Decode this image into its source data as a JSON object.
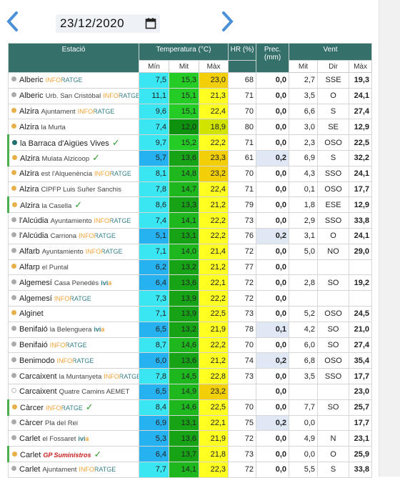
{
  "header": {
    "date": "23/12/2020"
  },
  "table": {
    "columns": {
      "station": "Estació",
      "temperature": "Temperatura (°C)",
      "humidity": "HR (%)",
      "precipitation": "Prec. (mm)",
      "wind": "Vent",
      "temp_min": "Mín",
      "temp_mean": "Mit",
      "temp_max": "Màx",
      "wind_mean": "Mit",
      "wind_dir": "Dir",
      "wind_max": "Màx"
    },
    "rows": [
      {
        "dot": "#aaaaaa",
        "name": "Alberic",
        "tag": "INFORATGE",
        "min": "7,5",
        "mit": "15,3",
        "max": "23,0",
        "hr": "68",
        "prec": "0,0",
        "vmit": "2,7",
        "dir": "SSE",
        "vmax": "19,3"
      },
      {
        "dot": "#aaaaaa",
        "name": "Alberic",
        "place": "Urb. San Cristóbal",
        "tag": "INFORATGE",
        "min": "11,1",
        "mit": "15,1",
        "max": "21,3",
        "hr": "71",
        "prec": "0,0",
        "vmit": "3,5",
        "dir": "O",
        "vmax": "24,1"
      },
      {
        "dot": "#e8b04a",
        "name": "Alzira",
        "place": "Ajuntament",
        "tag": "INFORATGE",
        "min": "9,6",
        "mit": "15,1",
        "max": "22,4",
        "hr": "70",
        "prec": "0,0",
        "vmit": "6,6",
        "dir": "S",
        "vmax": "27,4"
      },
      {
        "dot": "#e8b04a",
        "name": "Alzira",
        "place": "la Murta",
        "min": "7,4",
        "mit": "12,0",
        "max": "18,9",
        "hr": "80",
        "prec": "0,0",
        "vmit": "3,0",
        "dir": "SE",
        "vmax": "12,9"
      },
      {
        "dot": "#1f6f6f",
        "name": "la Barraca d'Aigües Vives",
        "verified": true,
        "min": "9,7",
        "mit": "15,2",
        "max": "22,2",
        "hr": "71",
        "prec": "0,0",
        "vmit": "2,3",
        "dir": "OSO",
        "vmax": "22,5"
      },
      {
        "dot": "#e8b04a",
        "name": "Alzira",
        "place": "Mulata Alzicoop",
        "verified": true,
        "min": "5,7",
        "mit": "13,6",
        "max": "23,3",
        "hr": "61",
        "prec": "0,2",
        "vmit": "6,9",
        "dir": "S",
        "vmax": "32,2"
      },
      {
        "dot": "#e8b04a",
        "name": "Alzira",
        "place": "est l'Alquenència",
        "tag": "INFORATGE",
        "min": "8,1",
        "mit": "14,8",
        "max": "23,2",
        "hr": "70",
        "prec": "0,0",
        "vmit": "4,3",
        "dir": "SSO",
        "vmax": "24,1"
      },
      {
        "dot": "#e8b04a",
        "name": "Alzira",
        "place": "CIPFP Luis Suñer Sanchis",
        "min": "7,8",
        "mit": "14,7",
        "max": "22,4",
        "hr": "71",
        "prec": "0,0",
        "vmit": "0,1",
        "dir": "OSO",
        "vmax": "17,7"
      },
      {
        "dot": "#e8b04a",
        "name": "Alzira",
        "place": "la Casella",
        "verified": true,
        "min": "8,6",
        "mit": "13,3",
        "max": "21,2",
        "hr": "79",
        "prec": "0,0",
        "vmit": "1,8",
        "dir": "ESE",
        "vmax": "12,9"
      },
      {
        "dot": "#aaaaaa",
        "name": "l'Alcúdia",
        "place": "Ayuntamiento",
        "tag": "INFORATGE",
        "min": "7,4",
        "mit": "14,1",
        "max": "22,2",
        "hr": "73",
        "prec": "0,0",
        "vmit": "2,9",
        "dir": "SSO",
        "vmax": "33,8"
      },
      {
        "dot": "#aaaaaa",
        "name": "l'Alcúdia",
        "place": "Carriona",
        "tag": "INFORATGE",
        "min": "5,1",
        "mit": "13,1",
        "max": "22,2",
        "hr": "76",
        "prec": "0,2",
        "vmit": "3,1",
        "dir": "O",
        "vmax": "24,1"
      },
      {
        "dot": "#aaaaaa",
        "name": "Alfarb",
        "place": "Ayuntamiento",
        "tag": "INFORATGE",
        "min": "7,1",
        "mit": "14,0",
        "max": "21,4",
        "hr": "72",
        "prec": "0,0",
        "vmit": "5,0",
        "dir": "NO",
        "vmax": "29,0"
      },
      {
        "dot": "#e8b04a",
        "name": "Alfarp",
        "place": "el Puntal",
        "min": "6,2",
        "mit": "13,2",
        "max": "21,2",
        "hr": "77",
        "prec": "0,0",
        "vmit": null,
        "dir": null,
        "vmax": null
      },
      {
        "dot": "#aaaaaa",
        "name": "Algemesí",
        "place": "Casa Penedés",
        "tag": "ivia",
        "min": "6,4",
        "mit": "13,6",
        "max": "22,1",
        "hr": "72",
        "prec": "0,0",
        "vmit": "2,8",
        "dir": "SO",
        "vmax": "19,2"
      },
      {
        "dot": "#aaaaaa",
        "name": "Algemesí",
        "tag": "INFORATGE",
        "min": "7,3",
        "mit": "13,9",
        "max": "22,2",
        "hr": "72",
        "prec": "0,0",
        "vmit": null,
        "dir": null,
        "vmax": null
      },
      {
        "dot": "#e8b04a",
        "name": "Alginet",
        "min": "7,1",
        "mit": "13,9",
        "max": "22,5",
        "hr": "73",
        "prec": "0,0",
        "vmit": "5,2",
        "dir": "OSO",
        "vmax": "24,5"
      },
      {
        "dot": "#aaaaaa",
        "name": "Benifaió",
        "place": "la Belenguera",
        "tag": "ivia",
        "min": "6,5",
        "mit": "13,2",
        "max": "21,9",
        "hr": "78",
        "prec": "0,1",
        "vmit": "4,2",
        "dir": "SO",
        "vmax": "21,0"
      },
      {
        "dot": "#aaaaaa",
        "name": "Benifaió",
        "tag": "INFORATGE",
        "min": "8,7",
        "mit": "14,6",
        "max": "22,2",
        "hr": "70",
        "prec": "0,0",
        "vmit": "6,0",
        "dir": "SO",
        "vmax": "27,4"
      },
      {
        "dot": "#aaaaaa",
        "name": "Benimodo",
        "tag": "INFORATGE",
        "min": "6,0",
        "mit": "13,6",
        "max": "21,2",
        "hr": "74",
        "prec": "0,2",
        "vmit": "6,8",
        "dir": "OSO",
        "vmax": "35,4"
      },
      {
        "dot": "#aaaaaa",
        "name": "Carcaixent",
        "place": "la Muntanyeta",
        "tag": "INFORATGE",
        "min": "7,8",
        "mit": "14,5",
        "max": "22,8",
        "hr": "73",
        "prec": "0,0",
        "vmit": "3,5",
        "dir": "SSO",
        "vmax": "17,7"
      },
      {
        "dot": "#ffffff",
        "name": "Carcaixent",
        "place": "Quatre Camins AEMET",
        "min": "6,5",
        "mit": "14,9",
        "max": "23,2",
        "hr": null,
        "prec": "0,0",
        "vmit": null,
        "dir": null,
        "vmax": "23,0"
      },
      {
        "dot": "#e8b04a",
        "name": "Càrcer",
        "tag": "INFORATGE",
        "verified": true,
        "min": "8,4",
        "mit": "14,6",
        "max": "22,5",
        "hr": "70",
        "prec": "0,0",
        "vmit": "7,7",
        "dir": "SO",
        "vmax": "25,7"
      },
      {
        "dot": "#aaaaaa",
        "name": "Càrcer",
        "place": "Pla del Rei",
        "min": "6,9",
        "mit": "13,1",
        "max": "22,1",
        "hr": "75",
        "prec": "0,2",
        "vmit": "0,0",
        "dir": null,
        "vmax": "17,7"
      },
      {
        "dot": "#aaaaaa",
        "name": "Carlet",
        "place": "el Fossaret",
        "tag": "ivia",
        "min": "5,3",
        "mit": "13,6",
        "max": "21,9",
        "hr": "72",
        "prec": "0,0",
        "vmit": "4,9",
        "dir": "N",
        "vmax": "23,1"
      },
      {
        "dot": "#e8b04a",
        "name": "Carlet",
        "tag": "GP Suministros",
        "verified": true,
        "min": "6,4",
        "mit": "13,7",
        "max": "21,8",
        "hr": "73",
        "prec": "0,0",
        "vmit": "0,0",
        "dir": "O",
        "vmax": "25,9"
      },
      {
        "dot": "#aaaaaa",
        "name": "Carlet",
        "place": "Ajuntament",
        "tag": "INFORATGE",
        "min": "7,7",
        "mit": "14,1",
        "max": "22,3",
        "hr": "72",
        "prec": "0,0",
        "vmit": "5,5",
        "dir": "S",
        "vmax": "33,8"
      }
    ]
  }
}
